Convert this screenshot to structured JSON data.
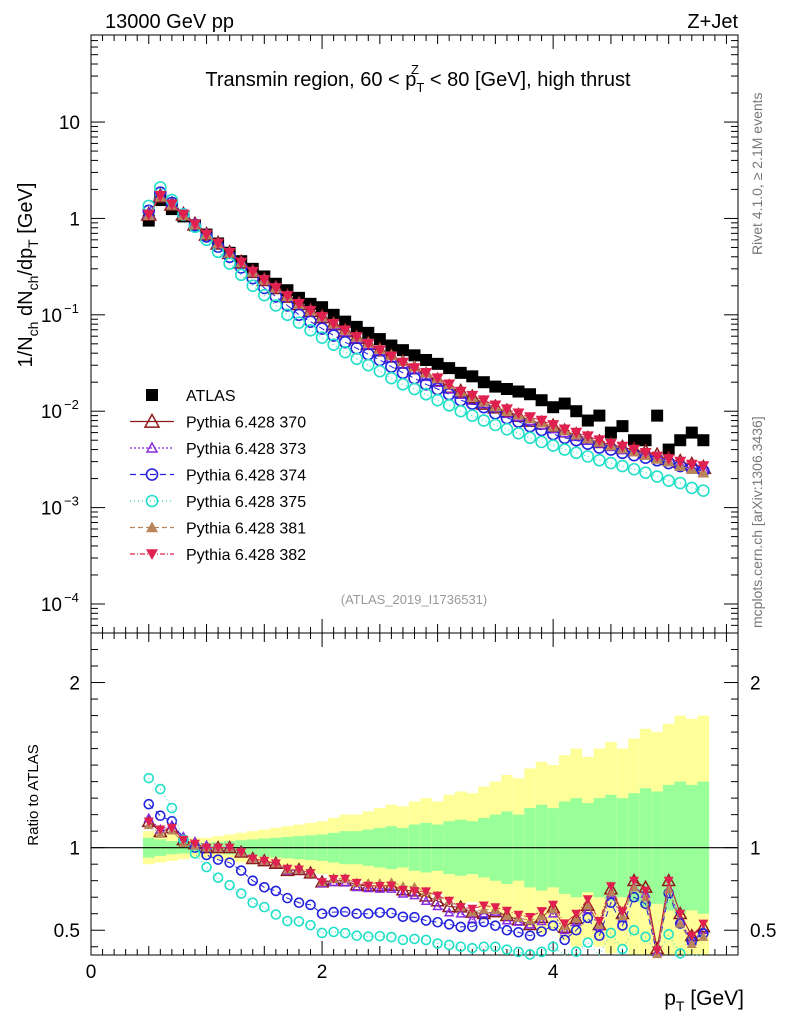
{
  "header": {
    "left": "13000 GeV pp",
    "right": "Z+Jet"
  },
  "side": {
    "top": "Rivet 4.1.0, ≥ 2.1M events",
    "bottom": "mcplots.cern.ch [arXiv:1306.3436]"
  },
  "colors": {
    "atlas": "#000000",
    "p370": "#8b1a1a",
    "p373": "#8a2be2",
    "p374": "#2222dd",
    "p375": "#22e0c8",
    "p381": "#b8865a",
    "p382": "#e0204f",
    "band_inner": "#99ff99",
    "band_outer": "#ffff99"
  },
  "chart_data": {
    "type": "scatter",
    "title": {
      "pre": "Transmin region, 60 < p",
      "sub": "T",
      "sup": "Z",
      "post": " < 80 [GeV], high thrust"
    },
    "analysis": "(ATLAS_2019_I1736531)",
    "xlabel": {
      "main": "p",
      "sub": "T",
      "unit": " [GeV]"
    },
    "ylabel": {
      "a": "1/N",
      "b": "ch",
      "c": " dN",
      "d": "ch",
      "e": "/dp",
      "f": "T",
      "g": " [GeV]"
    },
    "ratio_ylabel": "Ratio to ATLAS",
    "xlim": [
      0,
      5.6
    ],
    "ylim": [
      5e-05,
      80
    ],
    "ratio_ylim": [
      0.35,
      2.3
    ],
    "x_ticks": [
      "0",
      "2",
      "4"
    ],
    "y_ticks": [
      {
        "mant": "10",
        "exp": "",
        "v": 10
      },
      {
        "mant": "1",
        "exp": "",
        "v": 1
      },
      {
        "mant": "10",
        "exp": "−1",
        "v": 0.1
      },
      {
        "mant": "10",
        "exp": "−2",
        "v": 0.01
      },
      {
        "mant": "10",
        "exp": "−3",
        "v": 0.001
      },
      {
        "mant": "10",
        "exp": "−4",
        "v": 0.0001
      }
    ],
    "ratio_ticks": [
      "0.5",
      "1",
      "2"
    ],
    "x": [
      0.5,
      0.6,
      0.7,
      0.8,
      0.9,
      1.0,
      1.1,
      1.2,
      1.3,
      1.4,
      1.5,
      1.6,
      1.7,
      1.8,
      1.9,
      2.0,
      2.1,
      2.2,
      2.3,
      2.4,
      2.5,
      2.6,
      2.7,
      2.8,
      2.9,
      3.0,
      3.1,
      3.2,
      3.3,
      3.4,
      3.5,
      3.6,
      3.7,
      3.8,
      3.9,
      4.0,
      4.1,
      4.2,
      4.3,
      4.4,
      4.5,
      4.6,
      4.7,
      4.8,
      4.9,
      5.0,
      5.1,
      5.2,
      5.3
    ],
    "series": [
      {
        "name": "ATLAS",
        "key": "atlas",
        "marker": "square",
        "dash": "",
        "values": [
          0.95,
          1.55,
          1.25,
          1.05,
          0.85,
          0.68,
          0.55,
          0.44,
          0.36,
          0.3,
          0.25,
          0.21,
          0.18,
          0.15,
          0.13,
          0.12,
          0.1,
          0.085,
          0.075,
          0.065,
          0.056,
          0.048,
          0.043,
          0.038,
          0.034,
          0.031,
          0.028,
          0.025,
          0.023,
          0.02,
          0.018,
          0.017,
          0.016,
          0.015,
          0.013,
          0.011,
          0.012,
          0.01,
          0.008,
          0.009,
          0.006,
          0.007,
          0.005,
          0.005,
          0.009,
          0.004,
          0.005,
          0.006,
          0.005
        ]
      },
      {
        "name": "Pythia 6.428 370",
        "key": "p370",
        "marker": "tri-open",
        "dash": "",
        "values": [
          1.1,
          1.7,
          1.4,
          1.1,
          0.87,
          0.68,
          0.55,
          0.44,
          0.35,
          0.28,
          0.23,
          0.19,
          0.155,
          0.13,
          0.11,
          0.095,
          0.08,
          0.068,
          0.058,
          0.05,
          0.043,
          0.037,
          0.032,
          0.028,
          0.024,
          0.021,
          0.018,
          0.016,
          0.014,
          0.012,
          0.011,
          0.01,
          0.009,
          0.008,
          0.0075,
          0.007,
          0.0062,
          0.0057,
          0.0052,
          0.0048,
          0.0045,
          0.0042,
          0.004,
          0.0038,
          0.0035,
          0.0032,
          0.003,
          0.0028,
          0.0026
        ]
      },
      {
        "name": "Pythia 6.428 373",
        "key": "p373",
        "marker": "tri-open-small",
        "dash": "2,2",
        "values": [
          1.12,
          1.72,
          1.42,
          1.12,
          0.88,
          0.69,
          0.55,
          0.44,
          0.35,
          0.28,
          0.23,
          0.19,
          0.155,
          0.13,
          0.11,
          0.094,
          0.079,
          0.067,
          0.057,
          0.049,
          0.042,
          0.036,
          0.031,
          0.027,
          0.023,
          0.02,
          0.017,
          0.015,
          0.013,
          0.012,
          0.011,
          0.0095,
          0.0088,
          0.008,
          0.0072,
          0.0066,
          0.006,
          0.0055,
          0.005,
          0.0047,
          0.0043,
          0.004,
          0.0038,
          0.0036,
          0.0033,
          0.003,
          0.0028,
          0.0026,
          0.0025
        ]
      },
      {
        "name": "Pythia 6.428 374",
        "key": "p374",
        "marker": "circle",
        "dash": "6,4",
        "values": [
          1.2,
          1.85,
          1.45,
          1.1,
          0.85,
          0.65,
          0.51,
          0.4,
          0.31,
          0.24,
          0.19,
          0.155,
          0.125,
          0.1,
          0.085,
          0.072,
          0.061,
          0.052,
          0.045,
          0.039,
          0.034,
          0.029,
          0.025,
          0.022,
          0.019,
          0.017,
          0.015,
          0.013,
          0.012,
          0.011,
          0.0095,
          0.0085,
          0.0078,
          0.007,
          0.0064,
          0.0058,
          0.0053,
          0.005,
          0.0046,
          0.0042,
          0.004,
          0.0037,
          0.0035,
          0.0033,
          0.0031,
          0.0029,
          0.0027,
          0.0026,
          0.0024
        ]
      },
      {
        "name": "Pythia 6.428 375",
        "key": "p375",
        "marker": "circle",
        "dash": "1,3",
        "values": [
          1.35,
          2.1,
          1.55,
          1.1,
          0.82,
          0.6,
          0.45,
          0.34,
          0.26,
          0.2,
          0.16,
          0.125,
          0.1,
          0.083,
          0.069,
          0.058,
          0.049,
          0.041,
          0.035,
          0.03,
          0.026,
          0.022,
          0.019,
          0.017,
          0.015,
          0.013,
          0.0115,
          0.01,
          0.009,
          0.008,
          0.0072,
          0.0065,
          0.0059,
          0.0053,
          0.0048,
          0.0044,
          0.004,
          0.0037,
          0.0034,
          0.0031,
          0.0029,
          0.0027,
          0.0025,
          0.0023,
          0.0021,
          0.0019,
          0.0018,
          0.0016,
          0.0015
        ]
      },
      {
        "name": "Pythia 6.428 381",
        "key": "p381",
        "marker": "tri-filled",
        "dash": "5,3",
        "values": [
          1.08,
          1.68,
          1.38,
          1.08,
          0.86,
          0.68,
          0.55,
          0.44,
          0.35,
          0.28,
          0.23,
          0.19,
          0.156,
          0.13,
          0.11,
          0.095,
          0.081,
          0.069,
          0.059,
          0.051,
          0.044,
          0.038,
          0.033,
          0.029,
          0.025,
          0.022,
          0.019,
          0.016,
          0.014,
          0.0125,
          0.0112,
          0.01,
          0.0092,
          0.0084,
          0.0076,
          0.0069,
          0.0063,
          0.0057,
          0.0052,
          0.0048,
          0.0044,
          0.0041,
          0.0038,
          0.0035,
          0.0032,
          0.003,
          0.0027,
          0.0025,
          0.0023
        ]
      },
      {
        "name": "Pythia 6.428 382",
        "key": "p382",
        "marker": "tri-down-filled",
        "dash": "5,2,1,2",
        "values": [
          1.1,
          1.72,
          1.4,
          1.1,
          0.87,
          0.68,
          0.55,
          0.44,
          0.35,
          0.28,
          0.23,
          0.19,
          0.157,
          0.13,
          0.11,
          0.095,
          0.081,
          0.069,
          0.059,
          0.05,
          0.043,
          0.037,
          0.032,
          0.028,
          0.025,
          0.022,
          0.019,
          0.016,
          0.0145,
          0.013,
          0.0115,
          0.0105,
          0.0095,
          0.0087,
          0.008,
          0.0072,
          0.0065,
          0.006,
          0.0055,
          0.005,
          0.0046,
          0.0043,
          0.004,
          0.0037,
          0.0034,
          0.0032,
          0.003,
          0.0028,
          0.0027
        ]
      }
    ],
    "band_inner": [
      0.06,
      0.05,
      0.04,
      0.035,
      0.03,
      0.03,
      0.035,
      0.04,
      0.045,
      0.05,
      0.055,
      0.06,
      0.065,
      0.07,
      0.075,
      0.08,
      0.09,
      0.1,
      0.1,
      0.11,
      0.12,
      0.13,
      0.12,
      0.14,
      0.15,
      0.14,
      0.16,
      0.17,
      0.16,
      0.18,
      0.2,
      0.22,
      0.2,
      0.24,
      0.26,
      0.24,
      0.28,
      0.3,
      0.27,
      0.3,
      0.32,
      0.3,
      0.33,
      0.36,
      0.34,
      0.38,
      0.4,
      0.38,
      0.4
    ],
    "band_outer": [
      0.1,
      0.09,
      0.08,
      0.07,
      0.06,
      0.06,
      0.07,
      0.08,
      0.09,
      0.1,
      0.11,
      0.12,
      0.13,
      0.14,
      0.15,
      0.16,
      0.18,
      0.2,
      0.2,
      0.22,
      0.24,
      0.26,
      0.25,
      0.28,
      0.3,
      0.28,
      0.32,
      0.34,
      0.33,
      0.37,
      0.4,
      0.44,
      0.42,
      0.48,
      0.52,
      0.5,
      0.56,
      0.6,
      0.55,
      0.6,
      0.64,
      0.6,
      0.66,
      0.72,
      0.7,
      0.75,
      0.8,
      0.78,
      0.8
    ]
  }
}
